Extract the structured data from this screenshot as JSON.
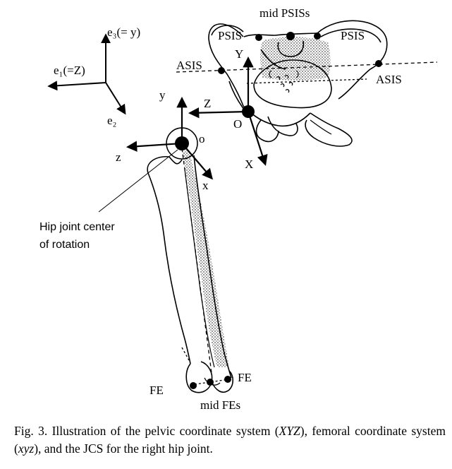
{
  "figure": {
    "global_axes": {
      "e3": "e₃(= y)",
      "e1": "e₁(=Z)",
      "e2": "e₂"
    },
    "pelvis_labels": {
      "mid_psis": "mid  PSISs",
      "psis_left": "PSIS",
      "psis_right": "PSIS",
      "asis_left": "ASIS",
      "asis_right": "ASIS",
      "axis_y": "Y",
      "axis_z": "Z",
      "axis_x": "X",
      "origin": "O"
    },
    "femur_labels": {
      "axis_y": "y",
      "axis_z": "z",
      "axis_x": "x",
      "origin": "o",
      "hip_center_line1": "Hip joint center",
      "hip_center_line2": "of rotation",
      "fe_left": "FE",
      "fe_right": "FE",
      "mid_fes": "mid FEs"
    }
  },
  "caption": {
    "prefix": "Fig. 3. Illustration of the pelvic coordinate system (",
    "pelvic_symbol": "XYZ",
    "middle": "), femoral coordinate system (",
    "femoral_symbol": "xyz",
    "suffix": "), and the JCS for the right hip joint."
  }
}
